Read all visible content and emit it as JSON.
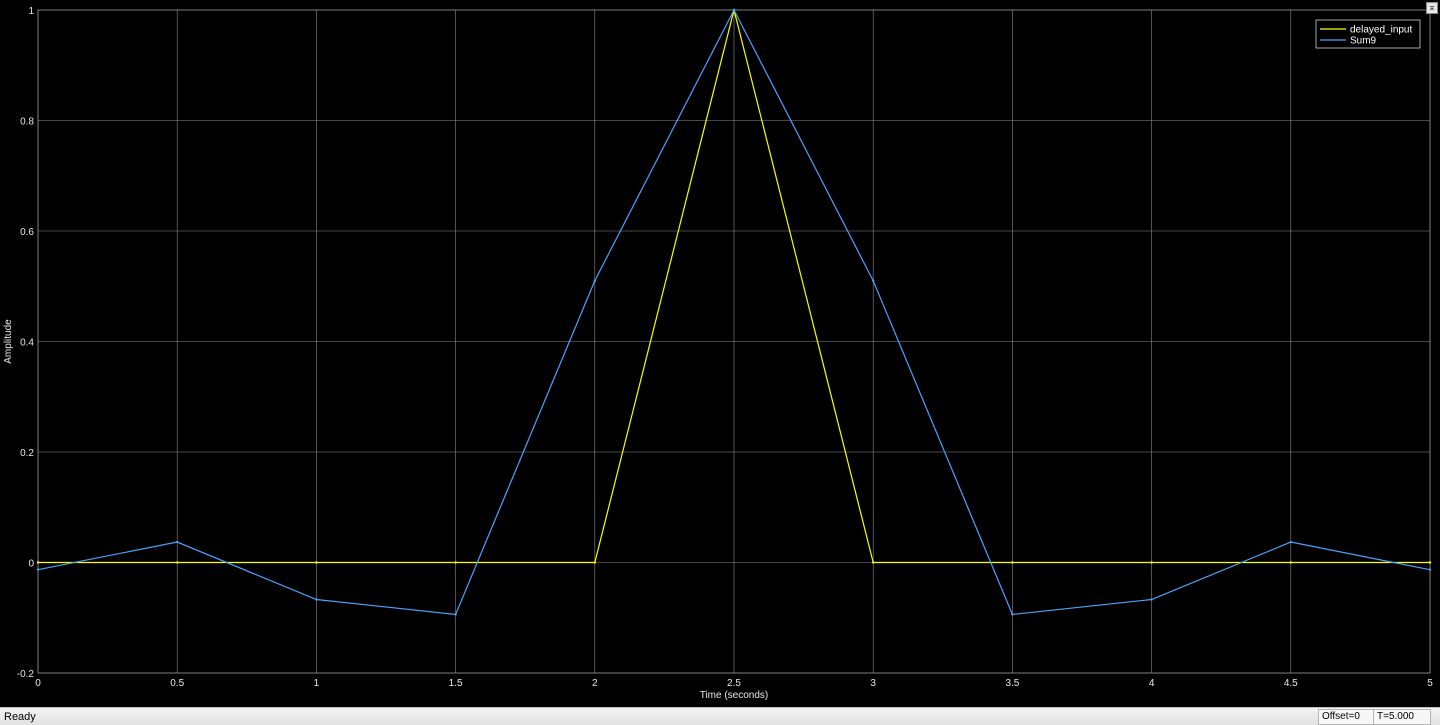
{
  "window": {
    "status": "Ready",
    "offset": "Offset=0",
    "time": "T=5.000",
    "restore_icon": "restore-icon"
  },
  "chart_data": {
    "type": "line",
    "title": "",
    "xlabel": "Time (seconds)",
    "ylabel": "Amplitude",
    "xlim": [
      0,
      5
    ],
    "ylim": [
      -0.2,
      1
    ],
    "xticks": [
      0,
      0.5,
      1,
      1.5,
      2,
      2.5,
      3,
      3.5,
      4,
      4.5,
      5
    ],
    "xtick_labels": [
      "0",
      "0.5",
      "1",
      "1.5",
      "2",
      "2.5",
      "3",
      "3.5",
      "4",
      "4.5",
      "5"
    ],
    "yticks": [
      -0.2,
      0,
      0.2,
      0.4,
      0.6,
      0.8,
      1
    ],
    "ytick_labels": [
      "-0.2",
      "0",
      "0.2",
      "0.4",
      "0.6",
      "0.8",
      "1"
    ],
    "grid": true,
    "legend_position": "top-right",
    "background": "#000000",
    "grid_color": "#8c8c8c",
    "series": [
      {
        "name": "delayed_input",
        "color": "#ffff00",
        "x": [
          0,
          0.5,
          1,
          1.5,
          2,
          2.5,
          3,
          3.5,
          4,
          4.5,
          5
        ],
        "y": [
          0,
          0,
          0,
          0,
          0,
          1,
          0,
          0,
          0,
          0,
          0
        ]
      },
      {
        "name": "Sum9",
        "color": "#4aa3ff",
        "x": [
          0,
          0.5,
          1,
          1.5,
          2,
          2.5,
          3,
          3.5,
          4,
          4.5,
          5
        ],
        "y": [
          -0.013,
          0.037,
          -0.067,
          -0.094,
          0.51,
          1,
          0.51,
          -0.094,
          -0.067,
          0.037,
          -0.013
        ]
      }
    ]
  }
}
